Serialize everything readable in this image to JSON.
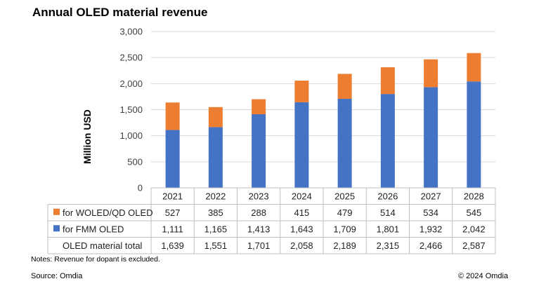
{
  "chart_data": {
    "type": "bar",
    "stacked": true,
    "title": "Annual OLED material revenue",
    "ylabel": "Million  USD",
    "xlabel": "",
    "ylim": [
      0,
      3000
    ],
    "yticks": [
      "0",
      "500",
      "1,000",
      "1,500",
      "2,000",
      "2,500",
      "3,000"
    ],
    "grid": true,
    "legend": "data-table",
    "categories": [
      "2021",
      "2022",
      "2023",
      "2024",
      "2025",
      "2026",
      "2027",
      "2028"
    ],
    "series": [
      {
        "name": "for FMM OLED",
        "color": "#4472C4",
        "values": [
          1111,
          1165,
          1413,
          1643,
          1709,
          1801,
          1932,
          2042
        ],
        "labels": [
          "1,111",
          "1,165",
          "1,413",
          "1,643",
          "1,709",
          "1,801",
          "1,932",
          "2,042"
        ]
      },
      {
        "name": "for WOLED/QD OLED",
        "color": "#ED7D31",
        "values": [
          527,
          385,
          288,
          415,
          479,
          514,
          534,
          545
        ],
        "labels": [
          "527",
          "385",
          "288",
          "415",
          "479",
          "514",
          "534",
          "545"
        ]
      }
    ],
    "total_row": {
      "name": "OLED material total",
      "labels": [
        "1,639",
        "1,551",
        "1,701",
        "2,058",
        "2,189",
        "2,315",
        "2,466",
        "2,587"
      ]
    }
  },
  "footer": {
    "notes": "Notes: Revenue for dopant is excluded.",
    "source": "Source: Omdia",
    "copyright": "© 2024 Omdia"
  }
}
